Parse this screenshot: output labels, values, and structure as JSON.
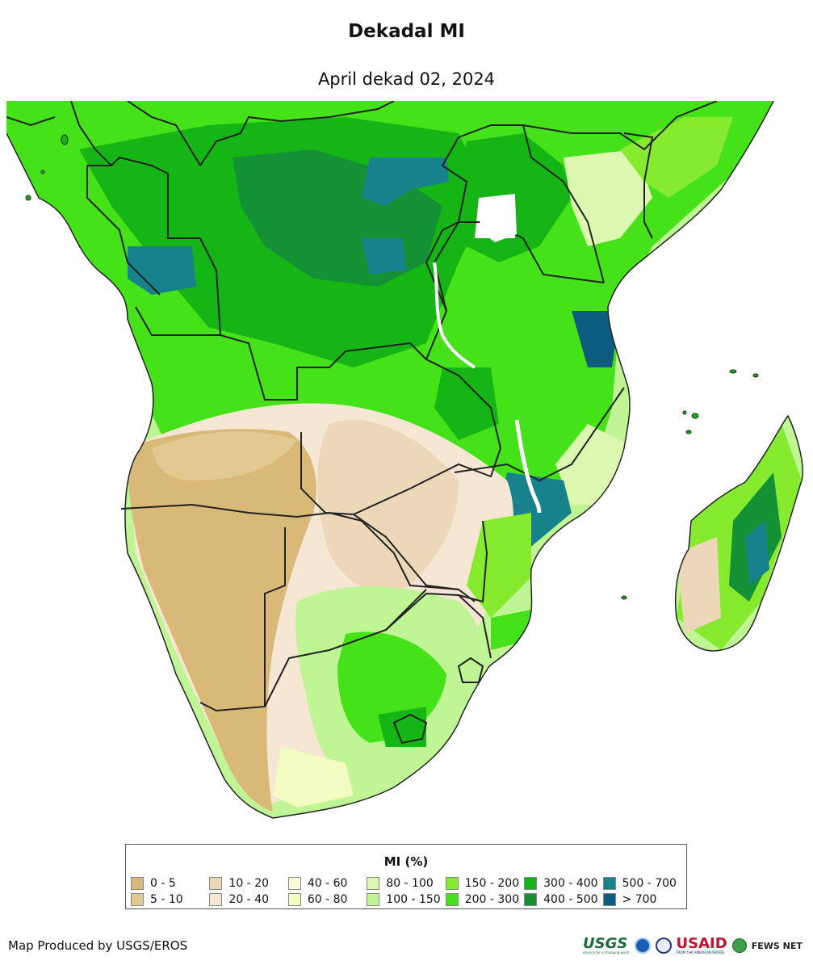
{
  "title": "Dekadal MI",
  "subtitle": "April dekad 02, 2024",
  "legend": {
    "title": "MI (%)",
    "items": [
      {
        "label": "0 - 5",
        "color": "#d9b978"
      },
      {
        "label": "5 - 10",
        "color": "#e2c98f"
      },
      {
        "label": "10 - 20",
        "color": "#ecd7b8"
      },
      {
        "label": "20 - 40",
        "color": "#f5e7d4"
      },
      {
        "label": "40 - 60",
        "color": "#fbfbdc"
      },
      {
        "label": "60 - 80",
        "color": "#f3fcc2"
      },
      {
        "label": "80 - 100",
        "color": "#dcf7b0"
      },
      {
        "label": "100 - 150",
        "color": "#bff594"
      },
      {
        "label": "150 - 200",
        "color": "#86ea2e"
      },
      {
        "label": "200 - 300",
        "color": "#45e21a"
      },
      {
        "label": "300 - 400",
        "color": "#15b515"
      },
      {
        "label": "400 - 500",
        "color": "#149134"
      },
      {
        "label": "500 - 700",
        "color": "#17818c"
      },
      {
        "label": "> 700",
        "color": "#0d5c80"
      }
    ]
  },
  "credit": "Map Produced by USGS/EROS",
  "logos": {
    "usgs": "USGS",
    "usgs_tagline": "science for a changing world",
    "usaid": "USAID",
    "usaid_tagline": "FROM THE AMERICAN PEOPLE",
    "fewsnet": "FEWS NET"
  }
}
